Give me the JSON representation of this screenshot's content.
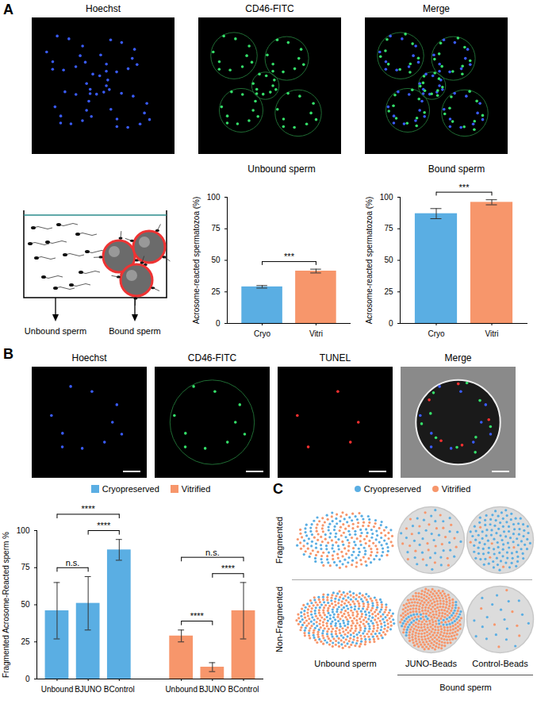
{
  "panel_labels": [
    "A",
    "B",
    "C"
  ],
  "images": {
    "A": [
      "Hoechst",
      "CD46-FITC",
      "Merge"
    ],
    "B": [
      "Hoechst",
      "CD46-FITC",
      "TUNEL",
      "Merge"
    ]
  },
  "schematic": {
    "labels": [
      "Unbound sperm",
      "Bound sperm"
    ]
  },
  "chart_data": [
    {
      "type": "bar",
      "title": "Unbound sperm",
      "ylabel": "Acrosome-reacted spermatozoa (%)",
      "categories": [
        "Cryo",
        "Vitri"
      ],
      "values": [
        29,
        41.5
      ],
      "errors": [
        1,
        1.5
      ],
      "colors": [
        "#5AAEE3",
        "#F7966B"
      ],
      "ylim": [
        0,
        100
      ],
      "yticks": [
        0,
        25,
        50,
        75,
        100
      ],
      "annotations": [
        {
          "from": "Cryo",
          "to": "Vitri",
          "text": "***"
        }
      ]
    },
    {
      "type": "bar",
      "title": "Bound sperm",
      "ylabel": "Acrosome-reacted spermatozoa (%)",
      "categories": [
        "Cryo",
        "Vitri"
      ],
      "values": [
        87,
        96
      ],
      "errors": [
        4,
        2
      ],
      "colors": [
        "#5AAEE3",
        "#F7966B"
      ],
      "ylim": [
        0,
        100
      ],
      "yticks": [
        0,
        25,
        50,
        75,
        100
      ],
      "annotations": [
        {
          "from": "Cryo",
          "to": "Vitri",
          "text": "***"
        }
      ]
    },
    {
      "type": "bar",
      "ylabel": "Fragmented Acrosome-Reacted sperm %",
      "categories": [
        "Unbound",
        "BJUNO",
        "BControl"
      ],
      "ylim": [
        0,
        100
      ],
      "yticks": [
        0,
        25,
        50,
        75,
        100
      ],
      "legend": "top",
      "series": [
        {
          "name": "Cryopreserved",
          "color": "#5AAEE3",
          "values": [
            46,
            51,
            87
          ],
          "errors": [
            19,
            18,
            7
          ],
          "annotations": [
            {
              "from": "Unbound",
              "to": "BJUNO",
              "text": "n.s."
            },
            {
              "from": "Unbound",
              "to": "BControl",
              "text": "****"
            },
            {
              "from": "BJUNO",
              "to": "BControl",
              "text": "****"
            }
          ]
        },
        {
          "name": "Vitrified",
          "color": "#F7966B",
          "values": [
            29,
            8,
            46
          ],
          "errors": [
            4,
            3,
            19
          ],
          "annotations": [
            {
              "from": "Unbound",
              "to": "BJUNO",
              "text": "****"
            },
            {
              "from": "Unbound",
              "to": "BControl",
              "text": "n.s."
            },
            {
              "from": "BJUNO",
              "to": "BControl",
              "text": "****"
            }
          ]
        }
      ]
    },
    {
      "type": "scatter",
      "tick_labels": false,
      "legend": "top",
      "rows": [
        "Fragmented",
        "Non-Fragmented"
      ],
      "categories": [
        "Unbound sperm",
        "JUNO-Beads",
        "Control-Beads"
      ],
      "group": {
        "label": "Bound sperm",
        "categories": [
          "JUNO-Beads",
          "Control-Beads"
        ]
      },
      "series": [
        {
          "name": "Cryopreserved",
          "color": "#5AAEE3",
          "values": [
            [
              120,
              35,
              110
            ],
            [
              150,
              40,
              18
            ]
          ]
        },
        {
          "name": "Vitrified",
          "color": "#F7966B",
          "values": [
            [
              110,
              25,
              6
            ],
            [
              250,
              300,
              7
            ]
          ]
        }
      ]
    }
  ]
}
